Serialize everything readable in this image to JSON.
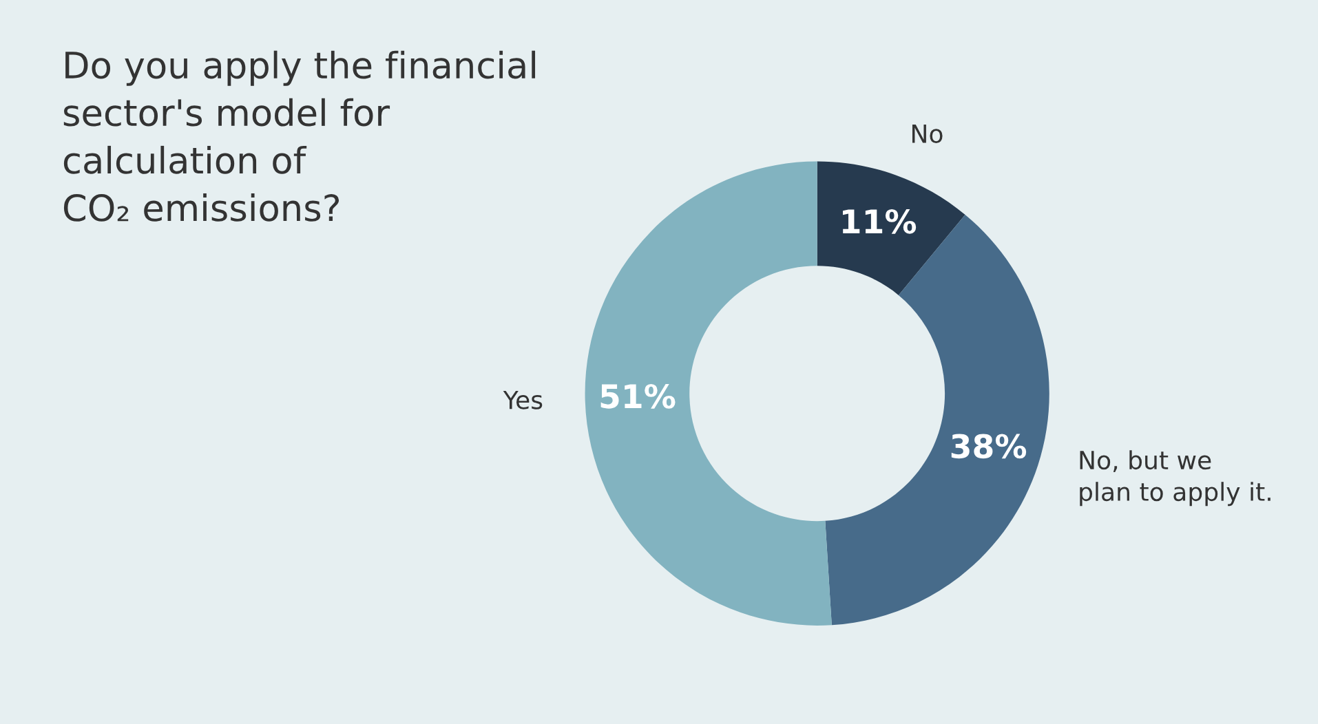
{
  "chart_data": {
    "type": "donut",
    "title": "Do you apply the financial\nsector's model for\ncalculation of\nCO₂ emissions?",
    "categories": [
      "No",
      "No, but we\nplan to apply it.",
      "Yes"
    ],
    "values": [
      11,
      38,
      51
    ],
    "value_labels": [
      "11%",
      "38%",
      "51%"
    ],
    "colors": [
      "#263a4f",
      "#476b8a",
      "#82b3c0"
    ],
    "legend": false
  }
}
